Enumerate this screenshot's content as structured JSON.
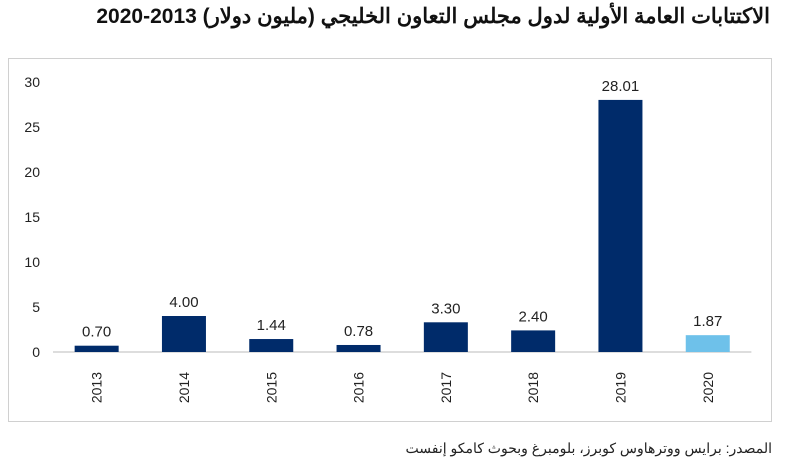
{
  "title": "الاكتتابات العامة الأولية لدول مجلس التعاون الخليجي (مليون دولار) 2013-2020",
  "source": "المصدر: برايس ووترهاوس كوبرز، بلومبرغ وبحوث كامكو إنفست",
  "chart_data": {
    "type": "bar",
    "title": "الاكتتابات العامة الأولية لدول مجلس التعاون الخليجي (مليون دولار) 2013-2020",
    "categories": [
      "2013",
      "2014",
      "2015",
      "2016",
      "2017",
      "2018",
      "2019",
      "2020"
    ],
    "values": [
      0.7,
      4.0,
      1.44,
      0.78,
      3.3,
      2.4,
      28.01,
      1.87
    ],
    "data_labels": [
      "0.70",
      "4.00",
      "1.44",
      "0.78",
      "3.30",
      "2.40",
      "28.01",
      "1.87"
    ],
    "ylim": [
      0,
      30
    ],
    "yticks": [
      0,
      5,
      10,
      15,
      20,
      25,
      30
    ],
    "grid": false,
    "colors": {
      "default": "#002b6a",
      "2020": "#6ec1ea"
    }
  }
}
